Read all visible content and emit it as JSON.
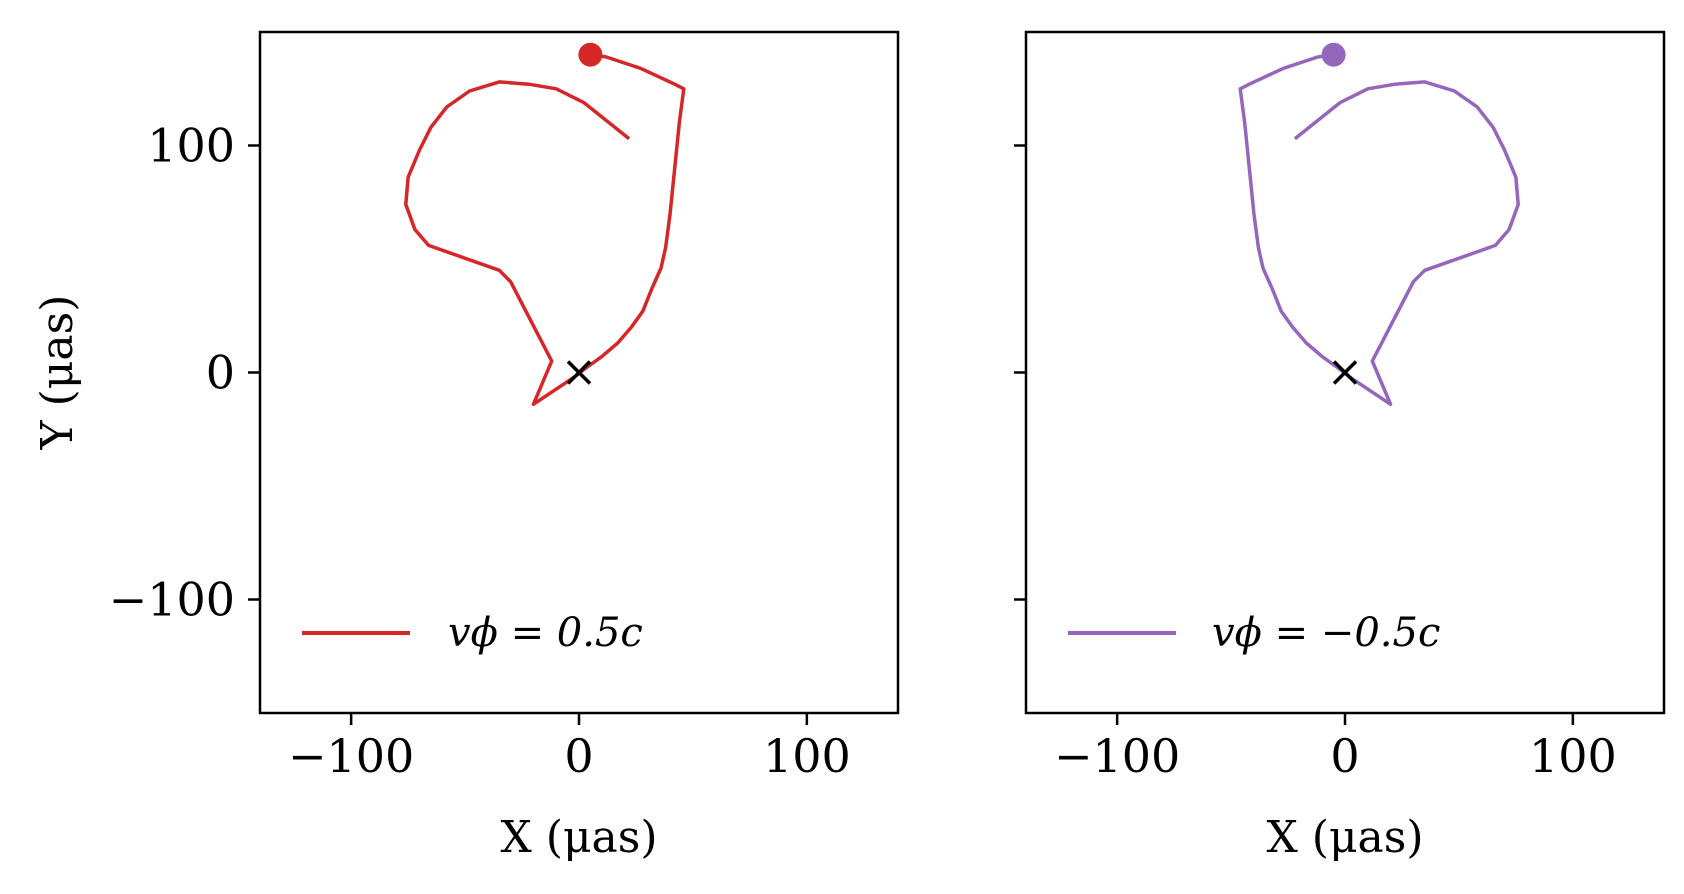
{
  "chart_data": [
    {
      "type": "line",
      "xlabel": "X (μas)",
      "ylabel": "Y (μas)",
      "xlim": [
        -140,
        140
      ],
      "ylim": [
        -150,
        150
      ],
      "xticks": [
        -100,
        0,
        100
      ],
      "xtick_labels": [
        "−100",
        "0",
        "100"
      ],
      "yticks": [
        -100,
        0,
        100
      ],
      "ytick_labels": [
        "−100",
        "0",
        "100"
      ],
      "grid": false,
      "legend_position": "lower-left",
      "series": [
        {
          "name": "vϕ = 0.5c",
          "color": "#d62728",
          "x": [
            5,
            12,
            27,
            42,
            46,
            44,
            42,
            40,
            38,
            36,
            32,
            28,
            23,
            17,
            10,
            3,
            -2,
            -20,
            -12,
            -30,
            -35,
            -66,
            -72,
            -76,
            -75,
            -70,
            -65,
            -58,
            -48,
            -35,
            -22,
            -10,
            2,
            12,
            22
          ],
          "y": [
            140,
            139,
            134,
            127,
            125,
            110,
            90,
            70,
            55,
            46,
            37,
            27,
            20,
            13,
            7,
            2,
            -2,
            -14,
            5,
            40,
            45,
            56,
            63,
            74,
            86,
            98,
            108,
            117,
            124,
            128,
            127,
            125,
            119,
            111,
            103
          ],
          "start_marker": [
            5,
            140
          ],
          "origin_marker": [
            0,
            0
          ]
        },
        {
          "name": "vϕ = −0.5c",
          "color": "#9467bd",
          "x": [
            -5,
            -12,
            -27,
            -42,
            -46,
            -44,
            -42,
            -40,
            -38,
            -36,
            -32,
            -28,
            -23,
            -17,
            -10,
            -3,
            2,
            20,
            12,
            30,
            35,
            66,
            72,
            76,
            75,
            70,
            65,
            58,
            48,
            35,
            22,
            10,
            -2,
            -12,
            -22
          ],
          "y": [
            140,
            139,
            134,
            127,
            125,
            110,
            90,
            70,
            55,
            46,
            37,
            27,
            20,
            13,
            7,
            2,
            -2,
            -14,
            5,
            40,
            45,
            56,
            63,
            74,
            86,
            98,
            108,
            117,
            124,
            128,
            127,
            125,
            119,
            111,
            103
          ],
          "start_marker": [
            -5,
            140
          ],
          "origin_marker": [
            0,
            0
          ]
        }
      ]
    }
  ]
}
